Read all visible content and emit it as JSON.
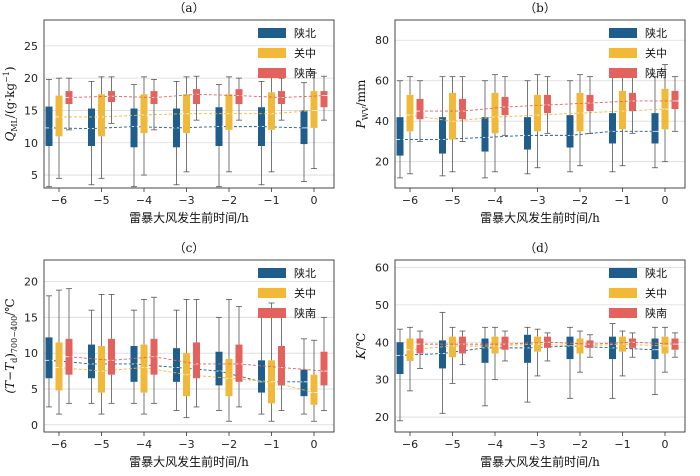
{
  "chart_data": [
    {
      "type": "box",
      "title": "（a）",
      "xlabel": "雷暴大风发生前时间/h",
      "ylabel": "Q_ML/(g·kg⁻¹)",
      "ylabel_parts": {
        "main": "Q",
        "sub": "ML",
        "rest": "/(g·kg",
        "sup": "−1",
        "tail": ")"
      },
      "x": [
        "−6",
        "−5",
        "−4",
        "−3",
        "−2",
        "−1",
        "0"
      ],
      "yticks": [
        5,
        10,
        15,
        20,
        25
      ],
      "ylim": [
        3,
        29
      ],
      "grid": true,
      "legend_position": "top-right",
      "series": [
        {
          "name": "陕北",
          "color": "#1f5d8c",
          "stats": [
            [
              3.2,
              9.5,
              12.3,
              15.6,
              19.8
            ],
            [
              3.5,
              9.5,
              12.2,
              15.3,
              19.5
            ],
            [
              3.2,
              9.3,
              12.5,
              15.3,
              19.0
            ],
            [
              3.5,
              9.3,
              12.3,
              15.3,
              19.5
            ],
            [
              3.2,
              9.5,
              12.5,
              15.5,
              19.0
            ],
            [
              3.5,
              9.5,
              12.5,
              15.5,
              19.5
            ],
            [
              4.0,
              9.8,
              12.3,
              15.0,
              19.3
            ]
          ]
        },
        {
          "name": "关中",
          "color": "#f0b93a",
          "stats": [
            [
              4.5,
              11.0,
              14.0,
              17.3,
              20.0
            ],
            [
              4.5,
              11.0,
              14.0,
              17.5,
              20.2
            ],
            [
              5.0,
              11.5,
              14.3,
              17.5,
              20.2
            ],
            [
              5.5,
              11.5,
              14.5,
              17.5,
              20.2
            ],
            [
              5.5,
              12.0,
              14.5,
              17.5,
              20.2
            ],
            [
              5.5,
              12.0,
              14.5,
              17.8,
              20.5
            ],
            [
              6.0,
              12.3,
              15.0,
              18.0,
              20.8
            ]
          ]
        },
        {
          "name": "陕南",
          "color": "#e3625d",
          "stats": [
            [
              12.0,
              16.0,
              17.0,
              18.0,
              20.0
            ],
            [
              13.0,
              16.3,
              17.2,
              18.0,
              20.2
            ],
            [
              12.0,
              16.0,
              17.0,
              18.0,
              19.8
            ],
            [
              13.5,
              16.0,
              17.5,
              18.3,
              20.3
            ],
            [
              13.5,
              16.0,
              17.3,
              18.3,
              20.0
            ],
            [
              13.5,
              16.0,
              17.0,
              18.0,
              20.0
            ],
            [
              13.5,
              15.5,
              17.3,
              18.0,
              20.3
            ]
          ]
        }
      ]
    },
    {
      "type": "box",
      "title": "（b）",
      "xlabel": "雷暴大风发生前时间/h",
      "ylabel": "P_WV/mm",
      "ylabel_parts": {
        "main": "P",
        "sub": "WV",
        "rest": "/mm",
        "sup": "",
        "tail": ""
      },
      "x": [
        "−6",
        "−5",
        "−4",
        "−3",
        "−2",
        "−1",
        "0"
      ],
      "yticks": [
        20,
        40,
        60,
        80
      ],
      "ylim": [
        7,
        90
      ],
      "grid": true,
      "legend_position": "top-right",
      "series": [
        {
          "name": "陕北",
          "color": "#1f5d8c",
          "stats": [
            [
              12.0,
              23.0,
              31.0,
              42.0,
              60.0
            ],
            [
              13.0,
              24.0,
              31.0,
              42.0,
              62.0
            ],
            [
              12.0,
              25.0,
              32.0,
              42.0,
              60.0
            ],
            [
              14.0,
              26.0,
              33.0,
              42.0,
              60.0
            ],
            [
              15.0,
              27.0,
              33.0,
              43.0,
              60.0
            ],
            [
              15.0,
              29.0,
              35.0,
              44.0,
              62.0
            ],
            [
              17.0,
              29.0,
              35.0,
              44.0,
              62.0
            ]
          ]
        },
        {
          "name": "关中",
          "color": "#f0b93a",
          "stats": [
            [
              14.0,
              35.0,
              43.0,
              53.0,
              62.0
            ],
            [
              15.0,
              31.0,
              40.0,
              54.0,
              62.0
            ],
            [
              15.0,
              34.0,
              42.0,
              54.0,
              63.0
            ],
            [
              17.0,
              35.0,
              43.0,
              53.0,
              63.0
            ],
            [
              18.0,
              35.0,
              44.0,
              54.0,
              63.0
            ],
            [
              18.0,
              36.0,
              45.0,
              55.0,
              66.0
            ],
            [
              20.0,
              36.0,
              46.0,
              56.0,
              68.0
            ]
          ]
        },
        {
          "name": "陕南",
          "color": "#e3625d",
          "stats": [
            [
              30.0,
              41.0,
              45.0,
              51.0,
              60.0
            ],
            [
              30.0,
              41.0,
              45.0,
              51.0,
              62.0
            ],
            [
              33.0,
              43.0,
              47.0,
              52.0,
              62.0
            ],
            [
              34.0,
              44.0,
              48.0,
              53.0,
              62.0
            ],
            [
              34.0,
              45.0,
              49.0,
              53.0,
              62.0
            ],
            [
              34.0,
              45.0,
              50.0,
              54.0,
              62.0
            ],
            [
              35.0,
              46.0,
              50.0,
              55.0,
              62.0
            ]
          ]
        }
      ]
    },
    {
      "type": "box",
      "title": "（c）",
      "xlabel": "雷暴大风发生前时间/h",
      "ylabel": "(T−Td)700−400/℃",
      "ylabel_parts": {
        "main": "(T−T",
        "sub": "d",
        "rest": ")",
        "sub2": "700−400",
        "tail": "/℃"
      },
      "x": [
        "−6",
        "−5",
        "−4",
        "−3",
        "−2",
        "−1",
        "0"
      ],
      "yticks": [
        0,
        5,
        10,
        15,
        20
      ],
      "ylim": [
        -1,
        23
      ],
      "grid": true,
      "legend_position": "top-right",
      "series": [
        {
          "name": "陕北",
          "color": "#1f5d8c",
          "stats": [
            [
              2.5,
              6.5,
              9.0,
              12.2,
              18.0
            ],
            [
              3.0,
              6.5,
              8.5,
              11.2,
              16.0
            ],
            [
              3.0,
              6.0,
              8.5,
              11.0,
              16.0
            ],
            [
              2.0,
              6.0,
              8.0,
              10.7,
              16.0
            ],
            [
              2.0,
              5.5,
              7.5,
              10.2,
              15.0
            ],
            [
              1.5,
              4.5,
              6.0,
              9.0,
              15.0
            ],
            [
              1.5,
              4.0,
              6.0,
              7.7,
              12.0
            ]
          ]
        },
        {
          "name": "关中",
          "color": "#f0b93a",
          "stats": [
            [
              1.5,
              4.8,
              8.0,
              11.5,
              18.8
            ],
            [
              1.5,
              4.5,
              7.5,
              11.0,
              18.2
            ],
            [
              1.5,
              4.5,
              8.0,
              11.2,
              17.5
            ],
            [
              1.0,
              4.0,
              7.0,
              10.0,
              17.5
            ],
            [
              0.5,
              4.0,
              6.5,
              9.2,
              17.5
            ],
            [
              0.5,
              3.0,
              6.0,
              9.0,
              17.0
            ],
            [
              0.5,
              2.8,
              4.5,
              7.0,
              11.8
            ]
          ]
        },
        {
          "name": "陕南",
          "color": "#e3625d",
          "stats": [
            [
              3.0,
              7.0,
              9.5,
              12.0,
              19.0
            ],
            [
              3.0,
              7.0,
              9.0,
              12.0,
              18.2
            ],
            [
              3.0,
              7.0,
              9.5,
              12.0,
              17.8
            ],
            [
              2.5,
              6.5,
              8.5,
              11.5,
              17.5
            ],
            [
              2.5,
              6.0,
              8.5,
              11.2,
              16.5
            ],
            [
              2.0,
              5.5,
              8.0,
              11.0,
              16.0
            ],
            [
              2.0,
              5.5,
              7.5,
              10.2,
              15.0
            ]
          ]
        }
      ]
    },
    {
      "type": "box",
      "title": "（d）",
      "xlabel": "雷暴大风发生前时间/h",
      "ylabel": "K/℃",
      "ylabel_parts": {
        "main": "K",
        "sub": "",
        "rest": "/℃",
        "sup": "",
        "tail": ""
      },
      "x": [
        "−6",
        "−5",
        "−4",
        "−3",
        "−2",
        "−1",
        "0"
      ],
      "yticks": [
        20,
        30,
        40,
        50,
        60
      ],
      "ylim": [
        16,
        62
      ],
      "grid": true,
      "legend_position": "top-right",
      "series": [
        {
          "name": "陕北",
          "color": "#1f5d8c",
          "stats": [
            [
              19.0,
              31.5,
              36.5,
              40.0,
              43.5
            ],
            [
              21.0,
              33.0,
              37.0,
              40.5,
              48.0
            ],
            [
              23.0,
              34.5,
              38.5,
              41.0,
              44.0
            ],
            [
              24.0,
              34.5,
              38.5,
              42.0,
              44.0
            ],
            [
              25.0,
              35.5,
              39.0,
              41.5,
              44.0
            ],
            [
              25.0,
              35.5,
              38.5,
              41.5,
              45.0
            ],
            [
              26.0,
              35.5,
              38.0,
              41.0,
              44.0
            ]
          ]
        },
        {
          "name": "关中",
          "color": "#f0b93a",
          "stats": [
            [
              27.0,
              35.0,
              38.0,
              41.0,
              44.0
            ],
            [
              29.0,
              36.0,
              39.0,
              41.5,
              44.0
            ],
            [
              30.0,
              37.0,
              39.0,
              41.5,
              44.0
            ],
            [
              31.0,
              37.5,
              39.5,
              41.5,
              43.5
            ],
            [
              32.0,
              37.0,
              39.0,
              41.0,
              43.0
            ],
            [
              31.0,
              37.5,
              39.5,
              41.5,
              43.0
            ],
            [
              32.0,
              37.0,
              39.0,
              41.5,
              44.0
            ]
          ]
        },
        {
          "name": "陕南",
          "color": "#e3625d",
          "stats": [
            [
              33.0,
              37.0,
              39.5,
              41.0,
              43.0
            ],
            [
              34.0,
              37.0,
              39.5,
              41.5,
              43.0
            ],
            [
              35.0,
              38.0,
              39.5,
              41.5,
              43.0
            ],
            [
              35.0,
              38.5,
              40.0,
              41.5,
              42.5
            ],
            [
              36.0,
              38.5,
              39.5,
              40.5,
              42.0
            ],
            [
              36.0,
              38.5,
              40.0,
              41.0,
              42.5
            ],
            [
              36.0,
              38.0,
              39.5,
              41.0,
              42.5
            ]
          ]
        }
      ]
    }
  ]
}
